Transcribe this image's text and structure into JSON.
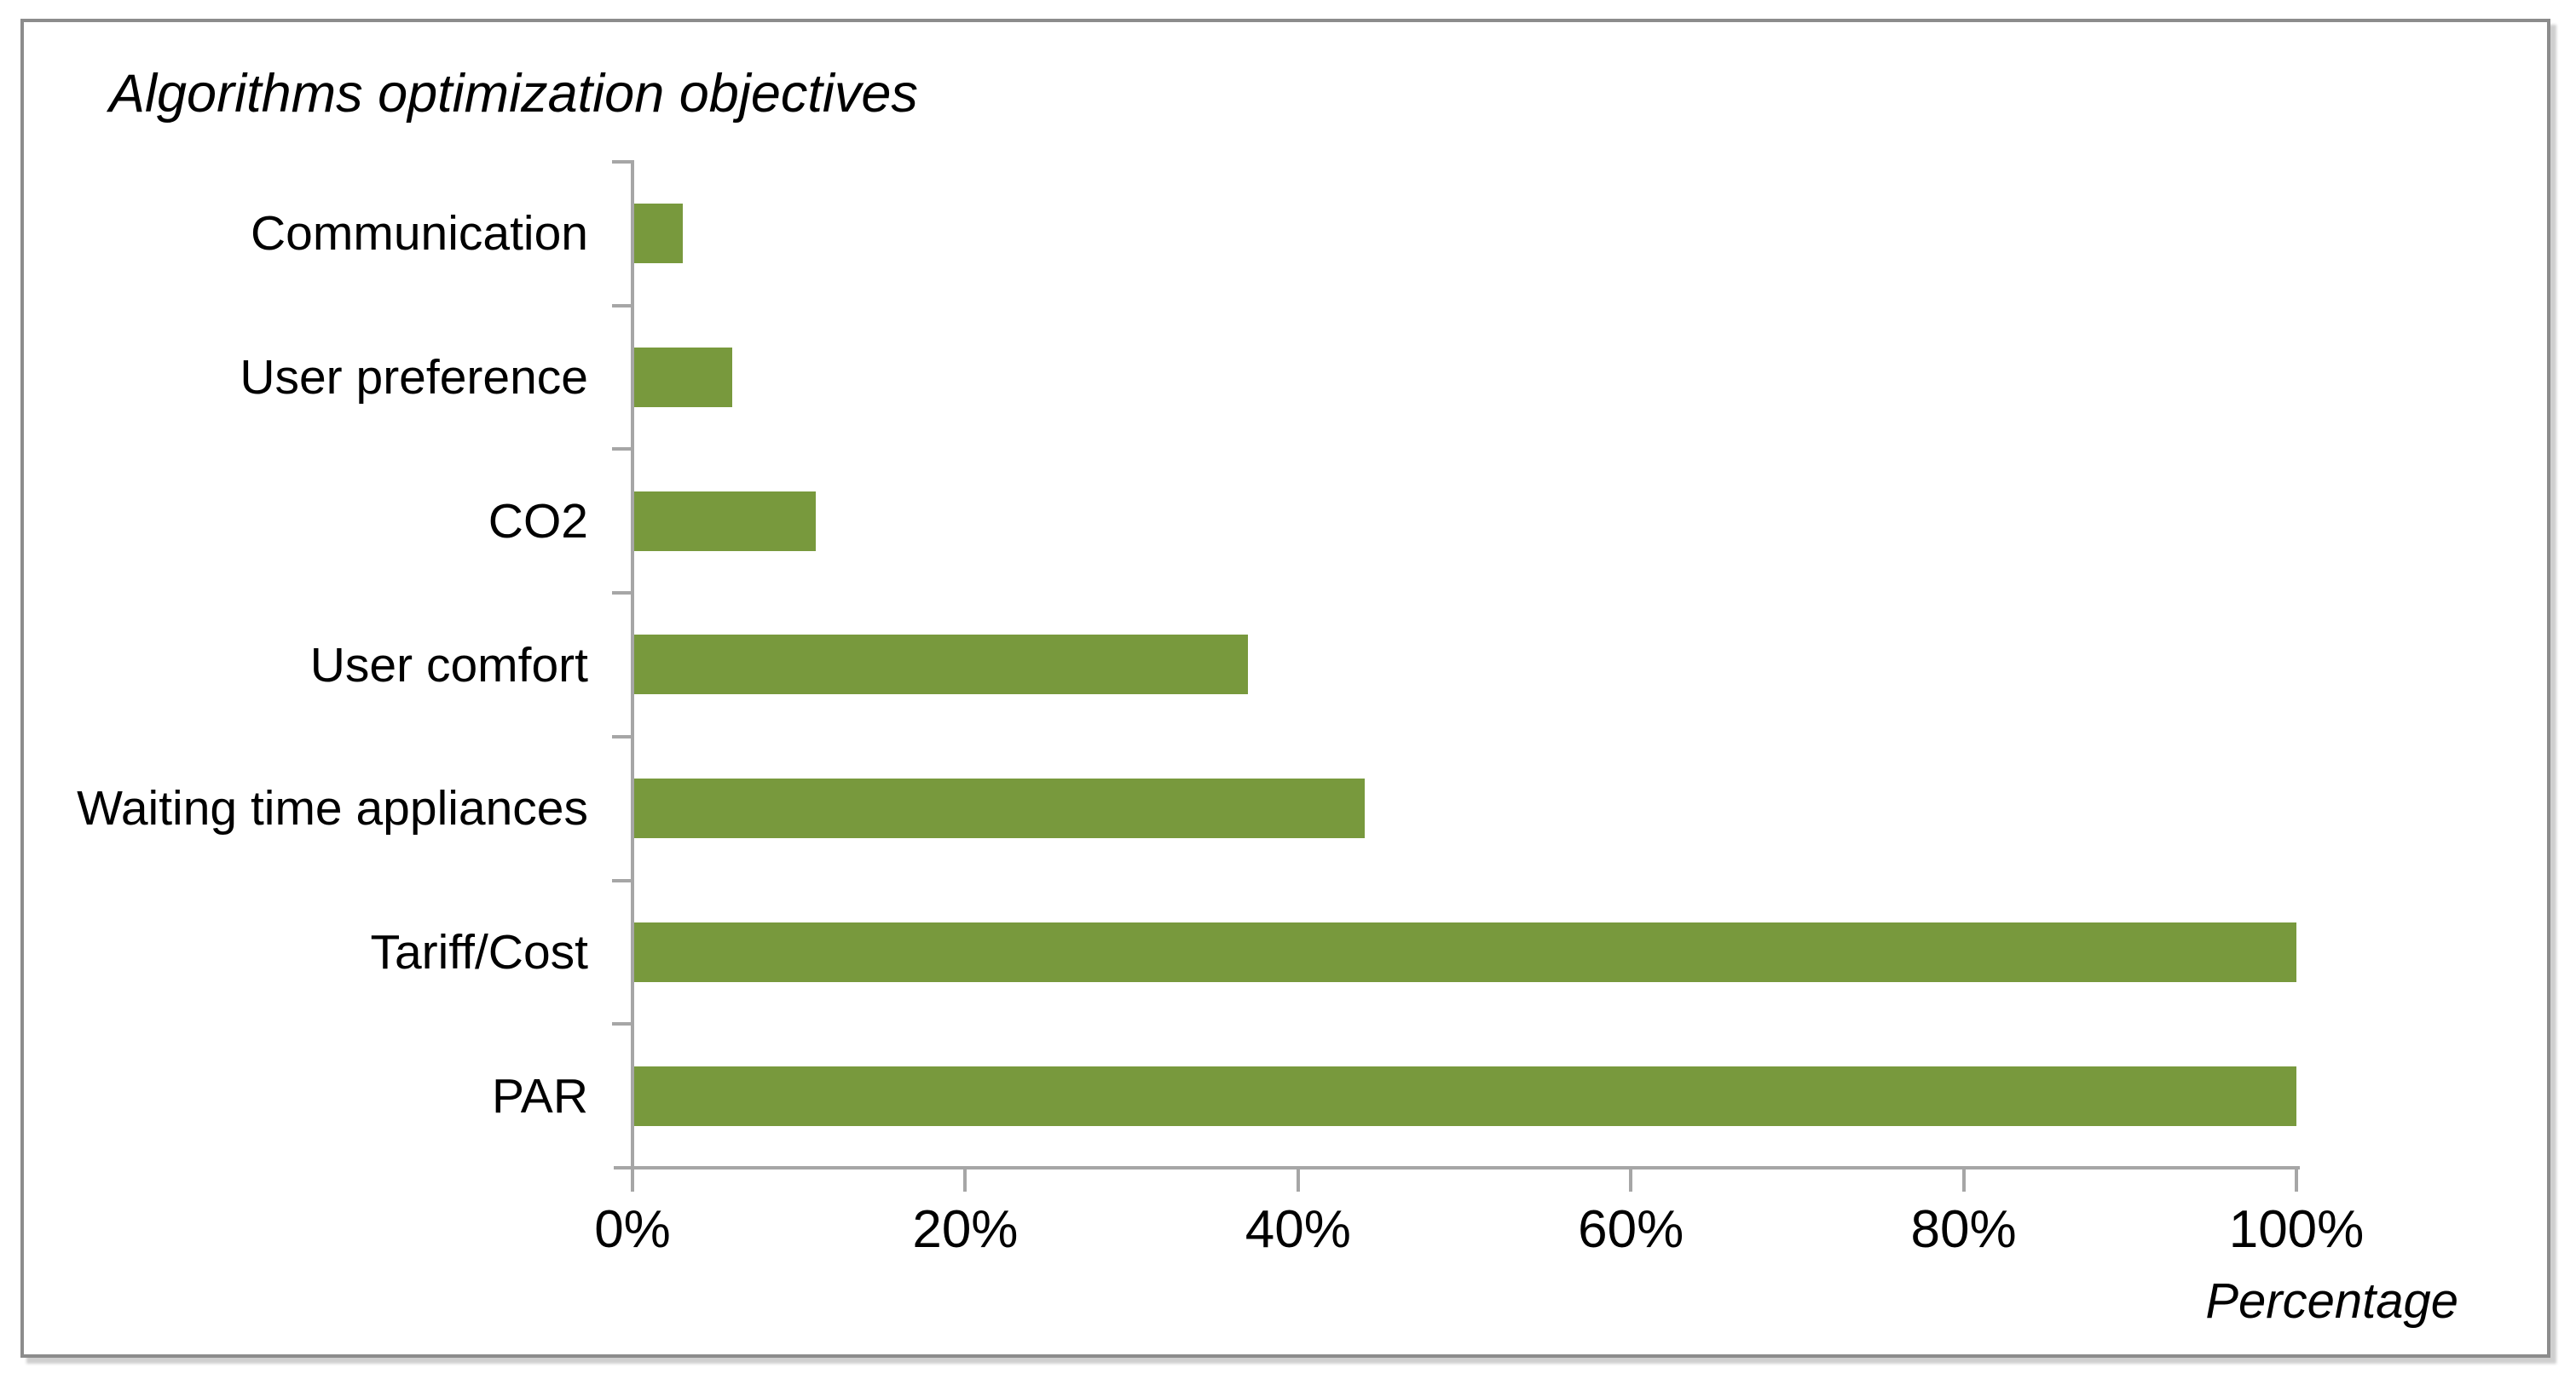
{
  "title": "Algorithms optimization objectives",
  "axis": {
    "x_label": "Percentage",
    "x_ticks": [
      "0%",
      "20%",
      "40%",
      "60%",
      "80%",
      "100%"
    ]
  },
  "chart_data": {
    "type": "bar",
    "orientation": "horizontal",
    "title": "Algorithms optimization objectives",
    "categories": [
      "Communication",
      "User preference",
      "CO2",
      "User comfort",
      "Waiting time appliances",
      "Tariff/Cost",
      "PAR"
    ],
    "values": [
      3,
      6,
      11,
      37,
      44,
      100,
      100
    ],
    "value_unit": "percent",
    "xlabel": "Percentage",
    "xlim": [
      0,
      100
    ],
    "x_tick_interval": 20,
    "grid": false,
    "legend": false,
    "bar_color": "#78993D",
    "axis_color": "#A6A6A6",
    "frame_color": "#8C8C8C",
    "text_color": "#000000"
  }
}
